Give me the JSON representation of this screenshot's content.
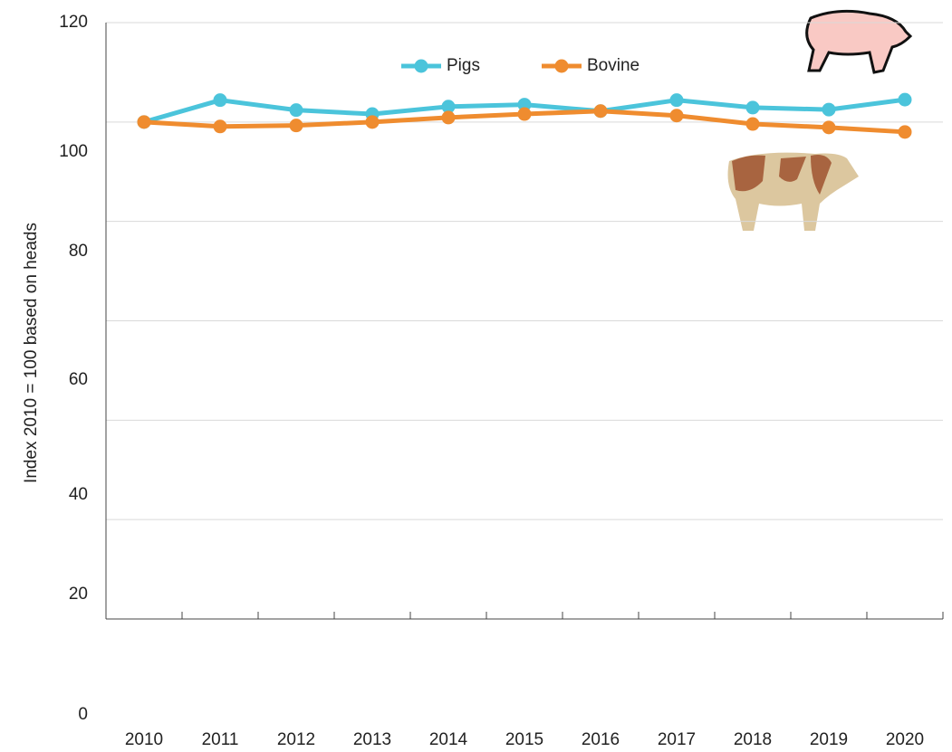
{
  "chart_data": {
    "type": "line",
    "y_label": "Index 2010 = 100 based on heads",
    "categories": [
      "2010",
      "2011",
      "2012",
      "2013",
      "2014",
      "2015",
      "2016",
      "2017",
      "2018",
      "2019",
      "2020"
    ],
    "series": [
      {
        "name": "Pigs",
        "color": "#4bc4db",
        "values": [
          100,
          104.4,
          102.4,
          101.6,
          103.1,
          103.5,
          102.2,
          104.4,
          102.9,
          102.5,
          104.5
        ]
      },
      {
        "name": "Bovine",
        "color": "#ef8c2f",
        "values": [
          100,
          99.1,
          99.3,
          100,
          100.9,
          101.6,
          102.2,
          101.3,
          99.6,
          98.9,
          98.0
        ]
      }
    ],
    "ylim": [
      0,
      120
    ],
    "yticks": [
      0,
      20,
      40,
      60,
      80,
      100,
      120
    ],
    "grid": true,
    "legend": "top"
  }
}
